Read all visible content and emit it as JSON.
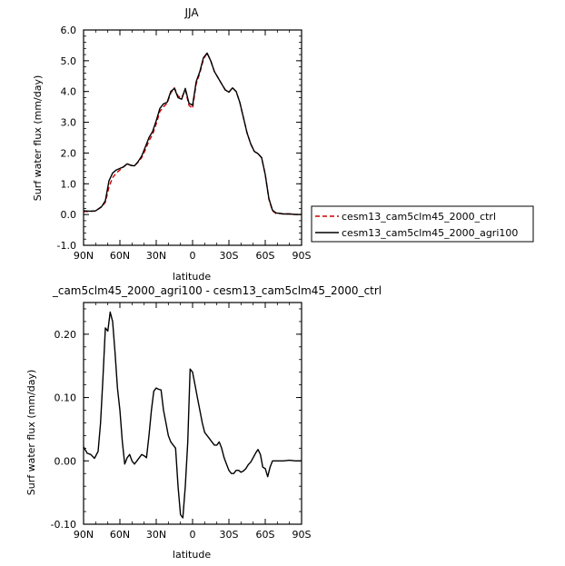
{
  "chart_data": [
    {
      "type": "line",
      "title": "JJA",
      "xlabel": "latitude",
      "ylabel": "Surf water flux (mm/day)",
      "xlim": [
        -90,
        90
      ],
      "ylim": [
        -1.0,
        6.0
      ],
      "x_ticks": [
        -90,
        -60,
        -30,
        0,
        30,
        60,
        90
      ],
      "x_tick_labels": [
        "90N",
        "60N",
        "30N",
        "0",
        "30S",
        "60S",
        "90S"
      ],
      "y_ticks": [
        -1.0,
        0.0,
        1.0,
        2.0,
        3.0,
        4.0,
        5.0,
        6.0
      ],
      "y_tick_labels": [
        "-1.0",
        "0.0",
        "1.0",
        "2.0",
        "3.0",
        "4.0",
        "5.0",
        "6.0"
      ],
      "grid": false,
      "legend_position": "right",
      "x": [
        -90,
        -85,
        -80,
        -75,
        -72,
        -69,
        -66,
        -63,
        -60,
        -57,
        -54,
        -51,
        -48,
        -45,
        -42,
        -39,
        -36,
        -33,
        -30,
        -27,
        -24,
        -21,
        -18,
        -15,
        -12,
        -9,
        -6,
        -3,
        0,
        3,
        6,
        9,
        12,
        15,
        18,
        21,
        24,
        27,
        30,
        33,
        36,
        39,
        42,
        45,
        48,
        51,
        54,
        57,
        60,
        63,
        66,
        69,
        72,
        75,
        80,
        85,
        90
      ],
      "series": [
        {
          "name": "cesm13_cam5clm45_2000_ctrl",
          "color": "#cc0000",
          "dash": "dashed",
          "values": [
            0.1,
            0.1,
            0.12,
            0.25,
            0.4,
            0.9,
            1.2,
            1.35,
            1.45,
            1.55,
            1.65,
            1.6,
            1.58,
            1.7,
            1.85,
            2.1,
            2.4,
            2.6,
            2.95,
            3.35,
            3.5,
            3.62,
            3.95,
            4.12,
            3.85,
            3.8,
            4.05,
            3.55,
            3.45,
            4.25,
            4.6,
            5.05,
            5.25,
            5.0,
            4.65,
            4.45,
            4.25,
            4.05,
            3.98,
            4.12,
            4.0,
            3.65,
            3.15,
            2.65,
            2.3,
            2.05,
            1.98,
            1.85,
            1.3,
            0.5,
            0.12,
            0.03,
            0.03,
            0.02,
            0.02,
            0.0,
            0.0
          ]
        },
        {
          "name": "cesm13_cam5clm45_2000_agri100",
          "color": "#000000",
          "dash": "solid",
          "values": [
            0.12,
            0.11,
            0.12,
            0.26,
            0.45,
            1.1,
            1.35,
            1.45,
            1.5,
            1.55,
            1.65,
            1.6,
            1.58,
            1.72,
            1.9,
            2.2,
            2.5,
            2.7,
            3.05,
            3.45,
            3.6,
            3.65,
            4.0,
            4.1,
            3.8,
            3.75,
            4.1,
            3.62,
            3.55,
            4.32,
            4.65,
            5.1,
            5.25,
            5.0,
            4.65,
            4.45,
            4.25,
            4.05,
            3.98,
            4.12,
            4.0,
            3.65,
            3.15,
            2.65,
            2.3,
            2.05,
            1.98,
            1.85,
            1.3,
            0.52,
            0.14,
            0.05,
            0.04,
            0.02,
            0.02,
            0.0,
            0.0
          ]
        }
      ]
    },
    {
      "type": "line",
      "title": "_cam5clm45_2000_agri100 - cesm13_cam5clm45_2000_ctrl",
      "xlabel": "latitude",
      "ylabel": "Surf water flux (mm/day)",
      "xlim": [
        -90,
        90
      ],
      "ylim": [
        -0.1,
        0.25
      ],
      "x_ticks": [
        -90,
        -60,
        -30,
        0,
        30,
        60,
        90
      ],
      "x_tick_labels": [
        "90N",
        "60N",
        "30N",
        "0",
        "30S",
        "60S",
        "90S"
      ],
      "y_ticks": [
        -0.1,
        0.0,
        0.1,
        0.2
      ],
      "y_tick_labels": [
        "-0.10",
        "0.00",
        "0.10",
        "0.20"
      ],
      "grid": false,
      "series": [
        {
          "color": "#000000",
          "dash": "solid",
          "x": [
            -90,
            -87,
            -84,
            -81,
            -78,
            -76,
            -74,
            -72,
            -70,
            -68,
            -66,
            -64,
            -62,
            -60,
            -58,
            -56,
            -54,
            -52,
            -50,
            -48,
            -46,
            -44,
            -42,
            -40,
            -38,
            -36,
            -34,
            -32,
            -30,
            -28,
            -26,
            -24,
            -22,
            -20,
            -18,
            -16,
            -14,
            -12,
            -10,
            -8,
            -6,
            -4,
            -2,
            0,
            2,
            4,
            6,
            8,
            10,
            12,
            14,
            16,
            18,
            20,
            22,
            24,
            26,
            28,
            30,
            32,
            34,
            36,
            38,
            40,
            42,
            44,
            46,
            48,
            50,
            52,
            54,
            56,
            58,
            60,
            62,
            64,
            66,
            68,
            70,
            72,
            75,
            80,
            85,
            90
          ],
          "values": [
            0.022,
            0.012,
            0.01,
            0.004,
            0.015,
            0.06,
            0.13,
            0.21,
            0.205,
            0.235,
            0.22,
            0.17,
            0.115,
            0.08,
            0.03,
            -0.005,
            0.005,
            0.01,
            0.0,
            -0.005,
            0.0,
            0.005,
            0.01,
            0.008,
            0.005,
            0.04,
            0.08,
            0.11,
            0.115,
            0.113,
            0.112,
            0.08,
            0.06,
            0.04,
            0.03,
            0.025,
            0.02,
            -0.04,
            -0.085,
            -0.09,
            -0.04,
            0.03,
            0.145,
            0.14,
            0.12,
            0.1,
            0.08,
            0.06,
            0.045,
            0.04,
            0.035,
            0.03,
            0.025,
            0.025,
            0.03,
            0.02,
            0.005,
            -0.005,
            -0.015,
            -0.02,
            -0.02,
            -0.015,
            -0.015,
            -0.018,
            -0.016,
            -0.012,
            -0.006,
            -0.002,
            0.005,
            0.012,
            0.018,
            0.01,
            -0.01,
            -0.012,
            -0.025,
            -0.01,
            0.0,
            0.0,
            0.0,
            0.0,
            0.0,
            0.001,
            0.0,
            0.0
          ]
        }
      ]
    }
  ]
}
